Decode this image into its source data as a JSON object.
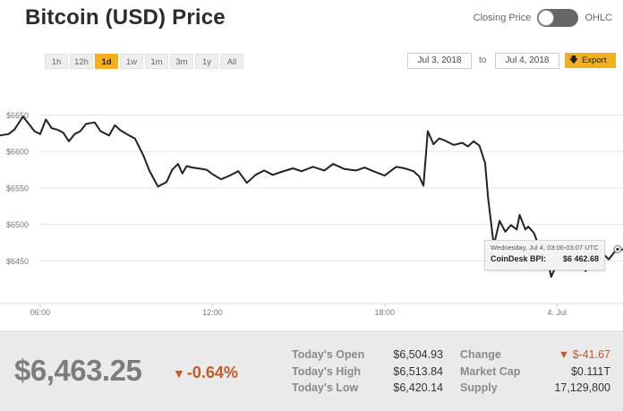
{
  "title": "Bitcoin (USD) Price",
  "toggle": {
    "left_label": "Closing Price",
    "right_label": "OHLC"
  },
  "ranges": [
    {
      "label": "1h",
      "active": false
    },
    {
      "label": "12h",
      "active": false
    },
    {
      "label": "1d",
      "active": true
    },
    {
      "label": "1w",
      "active": false
    },
    {
      "label": "1m",
      "active": false
    },
    {
      "label": "3m",
      "active": false
    },
    {
      "label": "1y",
      "active": false
    },
    {
      "label": "All",
      "active": false
    }
  ],
  "date_from": "Jul 3, 2018",
  "date_to_label": "to",
  "date_to": "Jul 4, 2018",
  "export_label": "Export",
  "colors": {
    "accent": "#f2b01e",
    "line": "#222222",
    "negative": "#c35a2a"
  },
  "tooltip": {
    "time": "Wednesday, Jul 4, 03:06-03:07 UTC",
    "label": "CoinDesk BPI:",
    "value": "$6 462.68"
  },
  "summary": {
    "price": "$6,463.25",
    "change_pct": "-0.64%",
    "stats_left": [
      {
        "label": "Today's Open",
        "value": "$6,504.93"
      },
      {
        "label": "Today's High",
        "value": "$6,513.84"
      },
      {
        "label": "Today's Low",
        "value": "$6,420.14"
      }
    ],
    "stats_right": [
      {
        "label": "Change",
        "value": "$-41.67"
      },
      {
        "label": "Market Cap",
        "value": "$0.111T"
      },
      {
        "label": "Supply",
        "value": "17,129,800"
      }
    ]
  },
  "chart_data": {
    "type": "line",
    "title": "",
    "xlabel": "",
    "ylabel": "",
    "x_ticks": [
      {
        "label": "06:00",
        "hour": 6
      },
      {
        "label": "12:00",
        "hour": 12
      },
      {
        "label": "18:00",
        "hour": 18
      },
      {
        "label": "4. Jul",
        "hour": 24
      }
    ],
    "y_ticks": [
      {
        "label": "$6450",
        "value": 6450
      },
      {
        "label": "$6500",
        "value": 6500
      },
      {
        "label": "$6550",
        "value": 6550
      },
      {
        "label": "$6600",
        "value": 6600
      },
      {
        "label": "$6650",
        "value": 6650
      }
    ],
    "xlim": [
      4.6,
      26.3
    ],
    "ylim": [
      6400,
      6690
    ],
    "grid": true,
    "series": [
      {
        "x": [
          4.6,
          4.9,
          5.1,
          5.4,
          5.6,
          5.8,
          6.0,
          6.2,
          6.4,
          6.6,
          6.8,
          7.0,
          7.2,
          7.4,
          7.6,
          7.9,
          8.1,
          8.4,
          8.6,
          8.8,
          9.1,
          9.3,
          9.6,
          9.8,
          10.1,
          10.4,
          10.6,
          10.8,
          10.95,
          11.1,
          11.3,
          11.5,
          11.8,
          12.0,
          12.3,
          12.6,
          12.9,
          13.2,
          13.5,
          13.8,
          14.1,
          14.4,
          14.8,
          15.1,
          15.5,
          15.9,
          16.2,
          16.6,
          17.0,
          17.3,
          17.6,
          18.0,
          18.4,
          18.7,
          19.0,
          19.2,
          19.35,
          19.5,
          19.7,
          19.9,
          20.1,
          20.4,
          20.7,
          20.9,
          21.1,
          21.3,
          21.5,
          21.6,
          21.8,
          22.0,
          22.2,
          22.4,
          22.6,
          22.7,
          22.9,
          23.0,
          23.2,
          23.4,
          23.5,
          23.7,
          23.8,
          24.0,
          24.2,
          24.4,
          24.6,
          24.8,
          25.0,
          25.2,
          25.4,
          25.6,
          25.8,
          26.0,
          26.3
        ],
        "y": [
          6622,
          6624,
          6630,
          6648,
          6638,
          6628,
          6624,
          6644,
          6632,
          6630,
          6626,
          6614,
          6624,
          6628,
          6638,
          6640,
          6628,
          6622,
          6636,
          6629,
          6622,
          6618,
          6594,
          6574,
          6552,
          6558,
          6575,
          6583,
          6570,
          6580,
          6578,
          6577,
          6575,
          6569,
          6562,
          6567,
          6573,
          6557,
          6568,
          6574,
          6568,
          6572,
          6577,
          6573,
          6579,
          6574,
          6583,
          6576,
          6574,
          6578,
          6573,
          6567,
          6579,
          6577,
          6573,
          6566,
          6553,
          6628,
          6610,
          6618,
          6615,
          6609,
          6612,
          6607,
          6614,
          6608,
          6584,
          6536,
          6471,
          6505,
          6490,
          6499,
          6493,
          6513,
          6493,
          6497,
          6488,
          6467,
          6474,
          6446,
          6428,
          6446,
          6450,
          6456,
          6444,
          6451,
          6436,
          6455,
          6448,
          6460,
          6452,
          6462,
          6466
        ]
      }
    ]
  }
}
